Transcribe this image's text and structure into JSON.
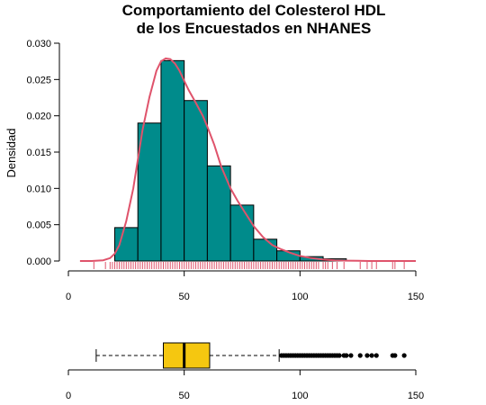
{
  "chart_data": [
    {
      "type": "histogram",
      "title": "Comportamiento del Colesterol HDL",
      "subtitle": "de los Encuestados en NHANES",
      "xlabel": "",
      "ylabel": "Densidad",
      "xlim": [
        0,
        150
      ],
      "ylim": [
        0,
        0.03
      ],
      "x_ticks": [
        "0",
        "50",
        "100",
        "150"
      ],
      "y_ticks": [
        "0.000",
        "0.005",
        "0.010",
        "0.015",
        "0.020",
        "0.025",
        "0.030"
      ],
      "bins": [
        {
          "from": 20,
          "to": 30,
          "density": 0.0046
        },
        {
          "from": 30,
          "to": 40,
          "density": 0.019
        },
        {
          "from": 40,
          "to": 50,
          "density": 0.0276
        },
        {
          "from": 50,
          "to": 60,
          "density": 0.0221
        },
        {
          "from": 60,
          "to": 70,
          "density": 0.0131
        },
        {
          "from": 70,
          "to": 80,
          "density": 0.0077
        },
        {
          "from": 80,
          "to": 90,
          "density": 0.003
        },
        {
          "from": 90,
          "to": 100,
          "density": 0.0014
        },
        {
          "from": 100,
          "to": 110,
          "density": 0.0006
        },
        {
          "from": 110,
          "to": 120,
          "density": 0.0003
        }
      ],
      "density_curve": {
        "x": [
          5,
          10,
          15,
          18,
          20,
          22,
          25,
          28,
          30,
          32,
          35,
          38,
          40,
          42,
          44,
          46,
          48,
          50,
          52,
          55,
          58,
          60,
          63,
          66,
          70,
          73,
          76,
          80,
          84,
          88,
          92,
          96,
          100,
          105,
          110,
          115,
          120,
          125,
          130,
          140,
          150
        ],
        "y": [
          0.0,
          0.0,
          0.0001,
          0.0004,
          0.001,
          0.0022,
          0.0055,
          0.01,
          0.014,
          0.018,
          0.0226,
          0.0262,
          0.0275,
          0.0279,
          0.0278,
          0.0272,
          0.0262,
          0.0248,
          0.0235,
          0.0218,
          0.02,
          0.0185,
          0.016,
          0.013,
          0.01,
          0.0083,
          0.0068,
          0.0048,
          0.0033,
          0.0022,
          0.0016,
          0.0011,
          0.0007,
          0.0004,
          0.0002,
          0.0001,
          5e-05,
          2e-05,
          0.0,
          0.0,
          0.0
        ]
      },
      "colors": {
        "bars": "#008B8B",
        "curve": "#DF536B",
        "rug": "#DF536B"
      },
      "rug": [
        11,
        16,
        18,
        19,
        20,
        21,
        22,
        23,
        24,
        25,
        26,
        27,
        28,
        29,
        30,
        31,
        32,
        33,
        34,
        35,
        36,
        37,
        38,
        39,
        40,
        41,
        42,
        43,
        44,
        45,
        46,
        47,
        48,
        49,
        50,
        51,
        52,
        53,
        54,
        55,
        56,
        57,
        58,
        59,
        60,
        61,
        62,
        63,
        64,
        65,
        66,
        67,
        68,
        69,
        70,
        71,
        72,
        73,
        74,
        75,
        76,
        77,
        78,
        79,
        80,
        81,
        82,
        83,
        84,
        85,
        86,
        87,
        88,
        89,
        90,
        91,
        92,
        93,
        94,
        95,
        96,
        97,
        98,
        99,
        100,
        101,
        102,
        103,
        104,
        105,
        106,
        107,
        108,
        110,
        111,
        112,
        114,
        116,
        119,
        126,
        129,
        131,
        133,
        140,
        141,
        145
      ]
    },
    {
      "type": "boxplot",
      "orientation": "horizontal",
      "xlim": [
        0,
        150
      ],
      "x_ticks": [
        "0",
        "50",
        "100",
        "150"
      ],
      "whisker_low": 12,
      "q1": 41,
      "median": 50,
      "q3": 61,
      "whisker_high": 91,
      "outliers": [
        92,
        93,
        94,
        95,
        96,
        97,
        98,
        99,
        100,
        101,
        102,
        103,
        104,
        105,
        106,
        107,
        108,
        109,
        110,
        111,
        112,
        113,
        114,
        115,
        116,
        117,
        119,
        120,
        122,
        126,
        129,
        131,
        133,
        140,
        141,
        145
      ],
      "colors": {
        "box": "#F5C710"
      }
    }
  ]
}
